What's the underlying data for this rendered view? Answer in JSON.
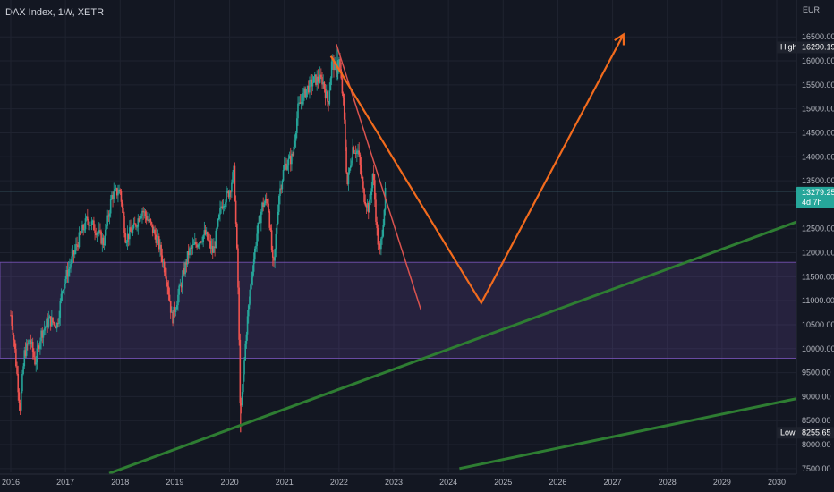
{
  "title": "DAX Index, 1W, XETR",
  "currency": "EUR",
  "chart_data": {
    "type": "candlestick",
    "x_labels": [
      "2016",
      "2017",
      "2018",
      "2019",
      "2020",
      "2021",
      "2022",
      "2023",
      "2024",
      "2025",
      "2026",
      "2027",
      "2028",
      "2029",
      "2030"
    ],
    "x_years": [
      2016,
      2017,
      2018,
      2019,
      2020,
      2021,
      2022,
      2023,
      2024,
      2025,
      2026,
      2027,
      2028,
      2029,
      2030
    ],
    "y_ticks": [
      7500,
      8000,
      8500,
      9000,
      9500,
      10000,
      10500,
      11000,
      11500,
      12000,
      12500,
      13000,
      13500,
      14000,
      14500,
      15000,
      15500,
      16000,
      16500
    ],
    "y_tick_labels": [
      "7500.00",
      "8000.00",
      "8500.00",
      "9000.00",
      "9500.00",
      "10000.00",
      "10500.00",
      "11000.00",
      "11500.00",
      "12000.00",
      "12500.00",
      "13000.00",
      "13500.00",
      "14000.00",
      "14500.00",
      "15000.00",
      "15500.00",
      "16000.00",
      "16500.00"
    ],
    "ylim": [
      7400,
      17300
    ],
    "xlim": [
      2015.9,
      2030.5
    ],
    "price_path": [
      [
        2016.0,
        10700
      ],
      [
        2016.05,
        10300
      ],
      [
        2016.12,
        9400
      ],
      [
        2016.17,
        8750
      ],
      [
        2016.25,
        9900
      ],
      [
        2016.35,
        10200
      ],
      [
        2016.45,
        9700
      ],
      [
        2016.55,
        10300
      ],
      [
        2016.7,
        10600
      ],
      [
        2016.85,
        10500
      ],
      [
        2016.95,
        11300
      ],
      [
        2017.1,
        11800
      ],
      [
        2017.25,
        12300
      ],
      [
        2017.4,
        12700
      ],
      [
        2017.55,
        12500
      ],
      [
        2017.7,
        12200
      ],
      [
        2017.85,
        13200
      ],
      [
        2018.0,
        13300
      ],
      [
        2018.1,
        12300
      ],
      [
        2018.25,
        12500
      ],
      [
        2018.4,
        12900
      ],
      [
        2018.55,
        12600
      ],
      [
        2018.7,
        12200
      ],
      [
        2018.85,
        11500
      ],
      [
        2018.95,
        10600
      ],
      [
        2019.1,
        11300
      ],
      [
        2019.25,
        12000
      ],
      [
        2019.4,
        12200
      ],
      [
        2019.55,
        12400
      ],
      [
        2019.7,
        12000
      ],
      [
        2019.85,
        13000
      ],
      [
        2020.0,
        13300
      ],
      [
        2020.08,
        13700
      ],
      [
        2020.15,
        11500
      ],
      [
        2020.2,
        8500
      ],
      [
        2020.3,
        10300
      ],
      [
        2020.4,
        11500
      ],
      [
        2020.5,
        12400
      ],
      [
        2020.6,
        13000
      ],
      [
        2020.7,
        13100
      ],
      [
        2020.8,
        11600
      ],
      [
        2020.9,
        13200
      ],
      [
        2021.0,
        13800
      ],
      [
        2021.15,
        14000
      ],
      [
        2021.25,
        15000
      ],
      [
        2021.4,
        15400
      ],
      [
        2021.55,
        15600
      ],
      [
        2021.7,
        15600
      ],
      [
        2021.8,
        15100
      ],
      [
        2021.87,
        16000
      ],
      [
        2021.95,
        15800
      ],
      [
        2022.0,
        16000
      ],
      [
        2022.08,
        15100
      ],
      [
        2022.15,
        13400
      ],
      [
        2022.25,
        14200
      ],
      [
        2022.35,
        14100
      ],
      [
        2022.45,
        13200
      ],
      [
        2022.55,
        12900
      ],
      [
        2022.62,
        13700
      ],
      [
        2022.7,
        12300
      ],
      [
        2022.75,
        12000
      ],
      [
        2022.8,
        12600
      ],
      [
        2022.85,
        13279
      ]
    ],
    "zone": {
      "from": 9800,
      "to": 11800
    },
    "current_price": {
      "value": 13279.25,
      "label": "13279.25",
      "countdown": "4d 7h"
    },
    "high": {
      "label": "High",
      "value": 16290.19,
      "value_label": "16290.19"
    },
    "low": {
      "label": "Low",
      "value": 8255.65,
      "value_label": "8255.65"
    },
    "projection": {
      "color": "#f26b1d",
      "points": [
        [
          2021.85,
          16100
        ],
        [
          2024.6,
          10950
        ],
        [
          2027.2,
          16550
        ]
      ]
    },
    "red_trendline": {
      "color": "#d9534f",
      "points": [
        [
          2021.95,
          16350
        ],
        [
          2023.5,
          10800
        ]
      ]
    },
    "green_lines": {
      "color": "#2e7d32",
      "lines": [
        [
          [
            2017.8,
            7400
          ],
          [
            2030.5,
            12700
          ]
        ],
        [
          [
            2024.2,
            7500
          ],
          [
            2030.5,
            8990
          ]
        ]
      ]
    },
    "colors": {
      "up": "#26a69a",
      "down": "#ef5350",
      "zone": "#7e57c2",
      "background": "#131722"
    }
  }
}
